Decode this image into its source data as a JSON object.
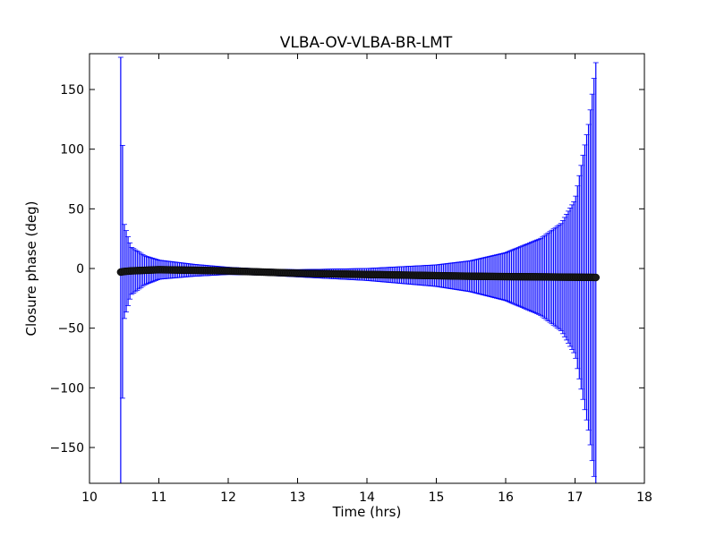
{
  "chart_data": {
    "type": "scatter",
    "title": "VLBA-OV-VLBA-BR-LMT",
    "xlabel": "Time (hrs)",
    "ylabel": "Closure phase (deg)",
    "xlim": [
      10,
      18
    ],
    "ylim": [
      -180,
      180
    ],
    "xticks": [
      10,
      11,
      12,
      13,
      14,
      15,
      16,
      17,
      18
    ],
    "yticks": [
      -150,
      -100,
      -50,
      0,
      50,
      100,
      150
    ],
    "xtick_labels": [
      "10",
      "11",
      "12",
      "13",
      "14",
      "15",
      "16",
      "17",
      "18"
    ],
    "ytick_labels": [
      "−150",
      "−100",
      "−50",
      "0",
      "50",
      "100",
      "150"
    ],
    "grid": false,
    "colors": {
      "errorbar": "#0000ff",
      "marker": "#1a1a1a"
    },
    "series": [
      {
        "x": [
          10.45,
          10.5,
          10.6,
          10.8,
          11.0,
          11.5,
          12.0,
          12.5,
          13.0,
          13.5,
          14.0,
          14.5,
          15.0,
          15.5,
          16.0,
          16.5,
          16.8,
          17.0,
          17.2,
          17.3
        ],
        "y": [
          -3,
          -2.5,
          -2,
          -1.5,
          -1,
          -1.5,
          -2,
          -3,
          -4,
          -4.5,
          -5,
          -5.5,
          -6,
          -6.5,
          -6.8,
          -7,
          -7.2,
          -7.3,
          -7.4,
          -7.5
        ],
        "yerr": [
          180,
          40,
          20,
          12,
          8,
          5,
          3,
          2.5,
          3,
          4,
          5,
          7,
          9,
          13,
          20,
          32,
          45,
          65,
          130,
          180
        ]
      }
    ]
  }
}
